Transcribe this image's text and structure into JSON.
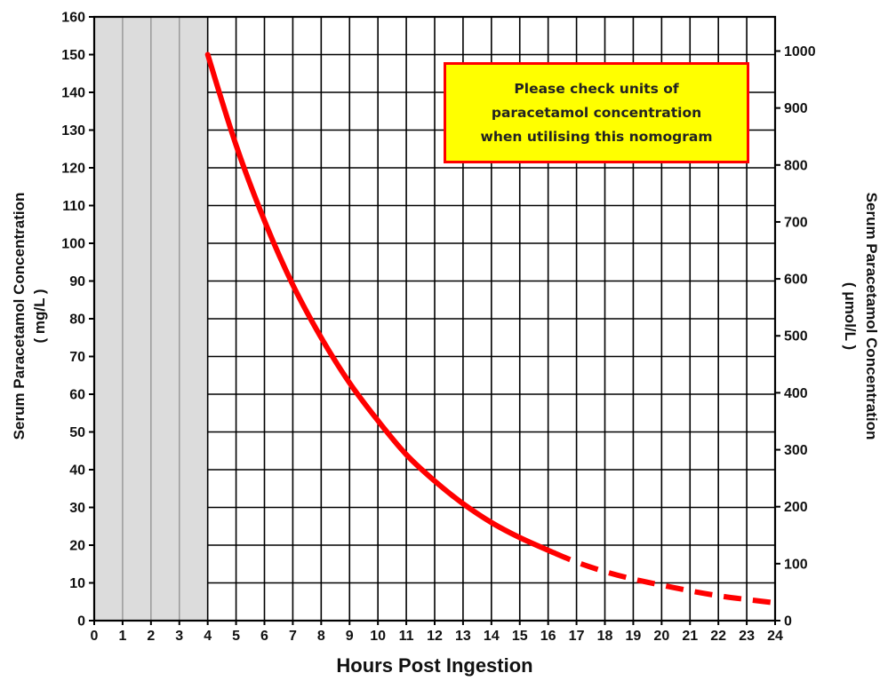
{
  "chart_data": {
    "type": "line",
    "xlabel": "Hours Post Ingestion",
    "ylabel": "Serum Paracetamol Concentration",
    "ylabel_unit": "( mg/L )",
    "y2label": "Serum Paracetamol Concentration",
    "y2label_unit": "( μmol/L )",
    "xlim": [
      0,
      24
    ],
    "ylim": [
      0,
      160
    ],
    "y2lim": [
      0,
      1060
    ],
    "x_ticks": [
      "0",
      "1",
      "2",
      "3",
      "4",
      "5",
      "6",
      "7",
      "8",
      "9",
      "10",
      "11",
      "12",
      "13",
      "14",
      "15",
      "16",
      "17",
      "18",
      "19",
      "20",
      "21",
      "22",
      "23",
      "24"
    ],
    "y_ticks": [
      "0",
      "10",
      "20",
      "30",
      "40",
      "50",
      "60",
      "70",
      "80",
      "90",
      "100",
      "110",
      "120",
      "130",
      "140",
      "150",
      "160"
    ],
    "y2_ticks": [
      "0",
      "100",
      "200",
      "300",
      "400",
      "500",
      "600",
      "700",
      "800",
      "900",
      "1000"
    ],
    "grid": true,
    "shaded_region": {
      "x": [
        0,
        4
      ],
      "color": "#dcdcdc"
    },
    "series": [
      {
        "color": "#ff0000",
        "solid": {
          "x": [
            4,
            5,
            6,
            7,
            8,
            9,
            10,
            11,
            12,
            13,
            14,
            15,
            16.2
          ],
          "y": [
            150,
            126,
            106,
            89,
            75,
            63,
            53,
            44,
            37,
            31,
            26,
            22,
            18
          ]
        },
        "dashed": {
          "x": [
            16.2,
            17,
            18,
            19,
            20,
            21,
            22,
            23,
            24
          ],
          "y": [
            18,
            15.5,
            13,
            11,
            9.4,
            7.9,
            6.6,
            5.6,
            4.7
          ]
        }
      }
    ],
    "annotation": {
      "lines": [
        "Please check units of",
        "paracetamol concentration",
        "when utilising this nomogram"
      ],
      "background": "#ffff00",
      "border": "#ff0000"
    }
  }
}
